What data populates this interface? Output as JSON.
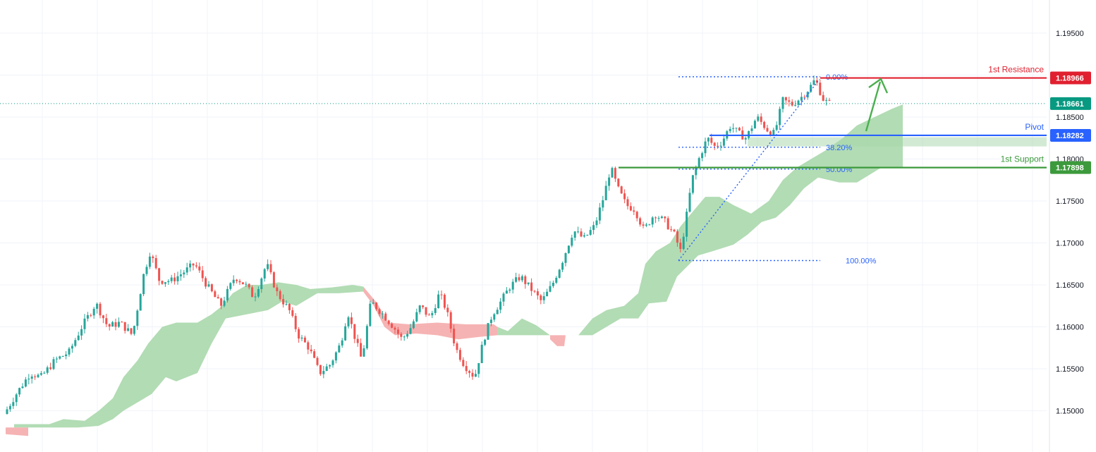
{
  "chart_data": {
    "type": "candlestick",
    "y_range": [
      1.147,
      1.198
    ],
    "y_ticks": [
      "1.19500",
      "1.19000",
      "1.18500",
      "1.18000",
      "1.17500",
      "1.17000",
      "1.16500",
      "1.16000",
      "1.15500",
      "1.15000"
    ],
    "y_tick_values": [
      1.195,
      1.19,
      1.185,
      1.18,
      1.175,
      1.17,
      1.165,
      1.16,
      1.155,
      1.15
    ],
    "last_price": {
      "label": "1.18661",
      "value": 1.18661
    },
    "levels": [
      {
        "key": "resistance",
        "name": "1st Resistance",
        "label": "1.18966",
        "value": 1.18966,
        "color": "#e0202f"
      },
      {
        "key": "pivot",
        "name": "Pivot",
        "label": "1.18282",
        "value": 1.18282,
        "color": "#2962ff"
      },
      {
        "key": "support",
        "name": "1st Support",
        "label": "1.17898",
        "value": 1.17898,
        "color": "#3c9a3c"
      }
    ],
    "fibonacci": [
      {
        "label": "0.00%",
        "value": 1.1898
      },
      {
        "label": "38.20%",
        "value": 1.1814
      },
      {
        "label": "50.00%",
        "value": 1.1788
      },
      {
        "label": "100.00%",
        "value": 1.1679
      }
    ],
    "price_path": [
      [
        0,
        1.1485
      ],
      [
        25,
        1.152
      ],
      [
        45,
        1.1545
      ],
      [
        60,
        1.154
      ],
      [
        80,
        1.156
      ],
      [
        100,
        1.157
      ],
      [
        118,
        1.16
      ],
      [
        138,
        1.1628
      ],
      [
        155,
        1.16
      ],
      [
        172,
        1.1605
      ],
      [
        190,
        1.159
      ],
      [
        205,
        1.166
      ],
      [
        215,
        1.169
      ],
      [
        228,
        1.1655
      ],
      [
        245,
        1.1655
      ],
      [
        262,
        1.1665
      ],
      [
        278,
        1.1675
      ],
      [
        295,
        1.165
      ],
      [
        315,
        1.1625
      ],
      [
        335,
        1.166
      ],
      [
        350,
        1.165
      ],
      [
        362,
        1.1635
      ],
      [
        380,
        1.1675
      ],
      [
        395,
        1.164
      ],
      [
        412,
        1.162
      ],
      [
        425,
        1.159
      ],
      [
        440,
        1.1575
      ],
      [
        455,
        1.1545
      ],
      [
        470,
        1.1555
      ],
      [
        485,
        1.158
      ],
      [
        495,
        1.1618
      ],
      [
        505,
        1.1588
      ],
      [
        515,
        1.156
      ],
      [
        528,
        1.163
      ],
      [
        545,
        1.1615
      ],
      [
        560,
        1.16
      ],
      [
        572,
        1.1585
      ],
      [
        585,
        1.16
      ],
      [
        598,
        1.1625
      ],
      [
        612,
        1.161
      ],
      [
        625,
        1.164
      ],
      [
        635,
        1.162
      ],
      [
        648,
        1.1575
      ],
      [
        660,
        1.1555
      ],
      [
        675,
        1.154
      ],
      [
        688,
        1.1585
      ],
      [
        700,
        1.1615
      ],
      [
        712,
        1.163
      ],
      [
        725,
        1.1648
      ],
      [
        740,
        1.166
      ],
      [
        755,
        1.1645
      ],
      [
        770,
        1.163
      ],
      [
        785,
        1.165
      ],
      [
        800,
        1.168
      ],
      [
        815,
        1.1715
      ],
      [
        830,
        1.1705
      ],
      [
        845,
        1.172
      ],
      [
        858,
        1.1755
      ],
      [
        868,
        1.179
      ],
      [
        878,
        1.1765
      ],
      [
        890,
        1.1745
      ],
      [
        902,
        1.174
      ],
      [
        915,
        1.1715
      ],
      [
        930,
        1.1735
      ],
      [
        945,
        1.1725
      ],
      [
        958,
        1.171
      ],
      [
        967,
        1.169
      ],
      [
        975,
        1.173
      ],
      [
        983,
        1.1775
      ],
      [
        995,
        1.1805
      ],
      [
        1005,
        1.1825
      ],
      [
        1015,
        1.1815
      ],
      [
        1025,
        1.182
      ],
      [
        1038,
        1.184
      ],
      [
        1050,
        1.183
      ],
      [
        1060,
        1.1825
      ],
      [
        1075,
        1.185
      ],
      [
        1090,
        1.1835
      ],
      [
        1100,
        1.183
      ],
      [
        1112,
        1.187
      ],
      [
        1125,
        1.1865
      ],
      [
        1140,
        1.1875
      ],
      [
        1150,
        1.1885
      ],
      [
        1158,
        1.1895
      ],
      [
        1165,
        1.188
      ],
      [
        1170,
        1.187
      ],
      [
        1178,
        1.1866
      ]
    ]
  },
  "colors": {
    "up": "#26a69a",
    "down": "#ef5350",
    "cloud_bull": "#a5d6a7",
    "cloud_bear": "#f4a6a6",
    "fib": "#2962ff",
    "arrow": "#4caf50",
    "last_price": "#089981"
  }
}
